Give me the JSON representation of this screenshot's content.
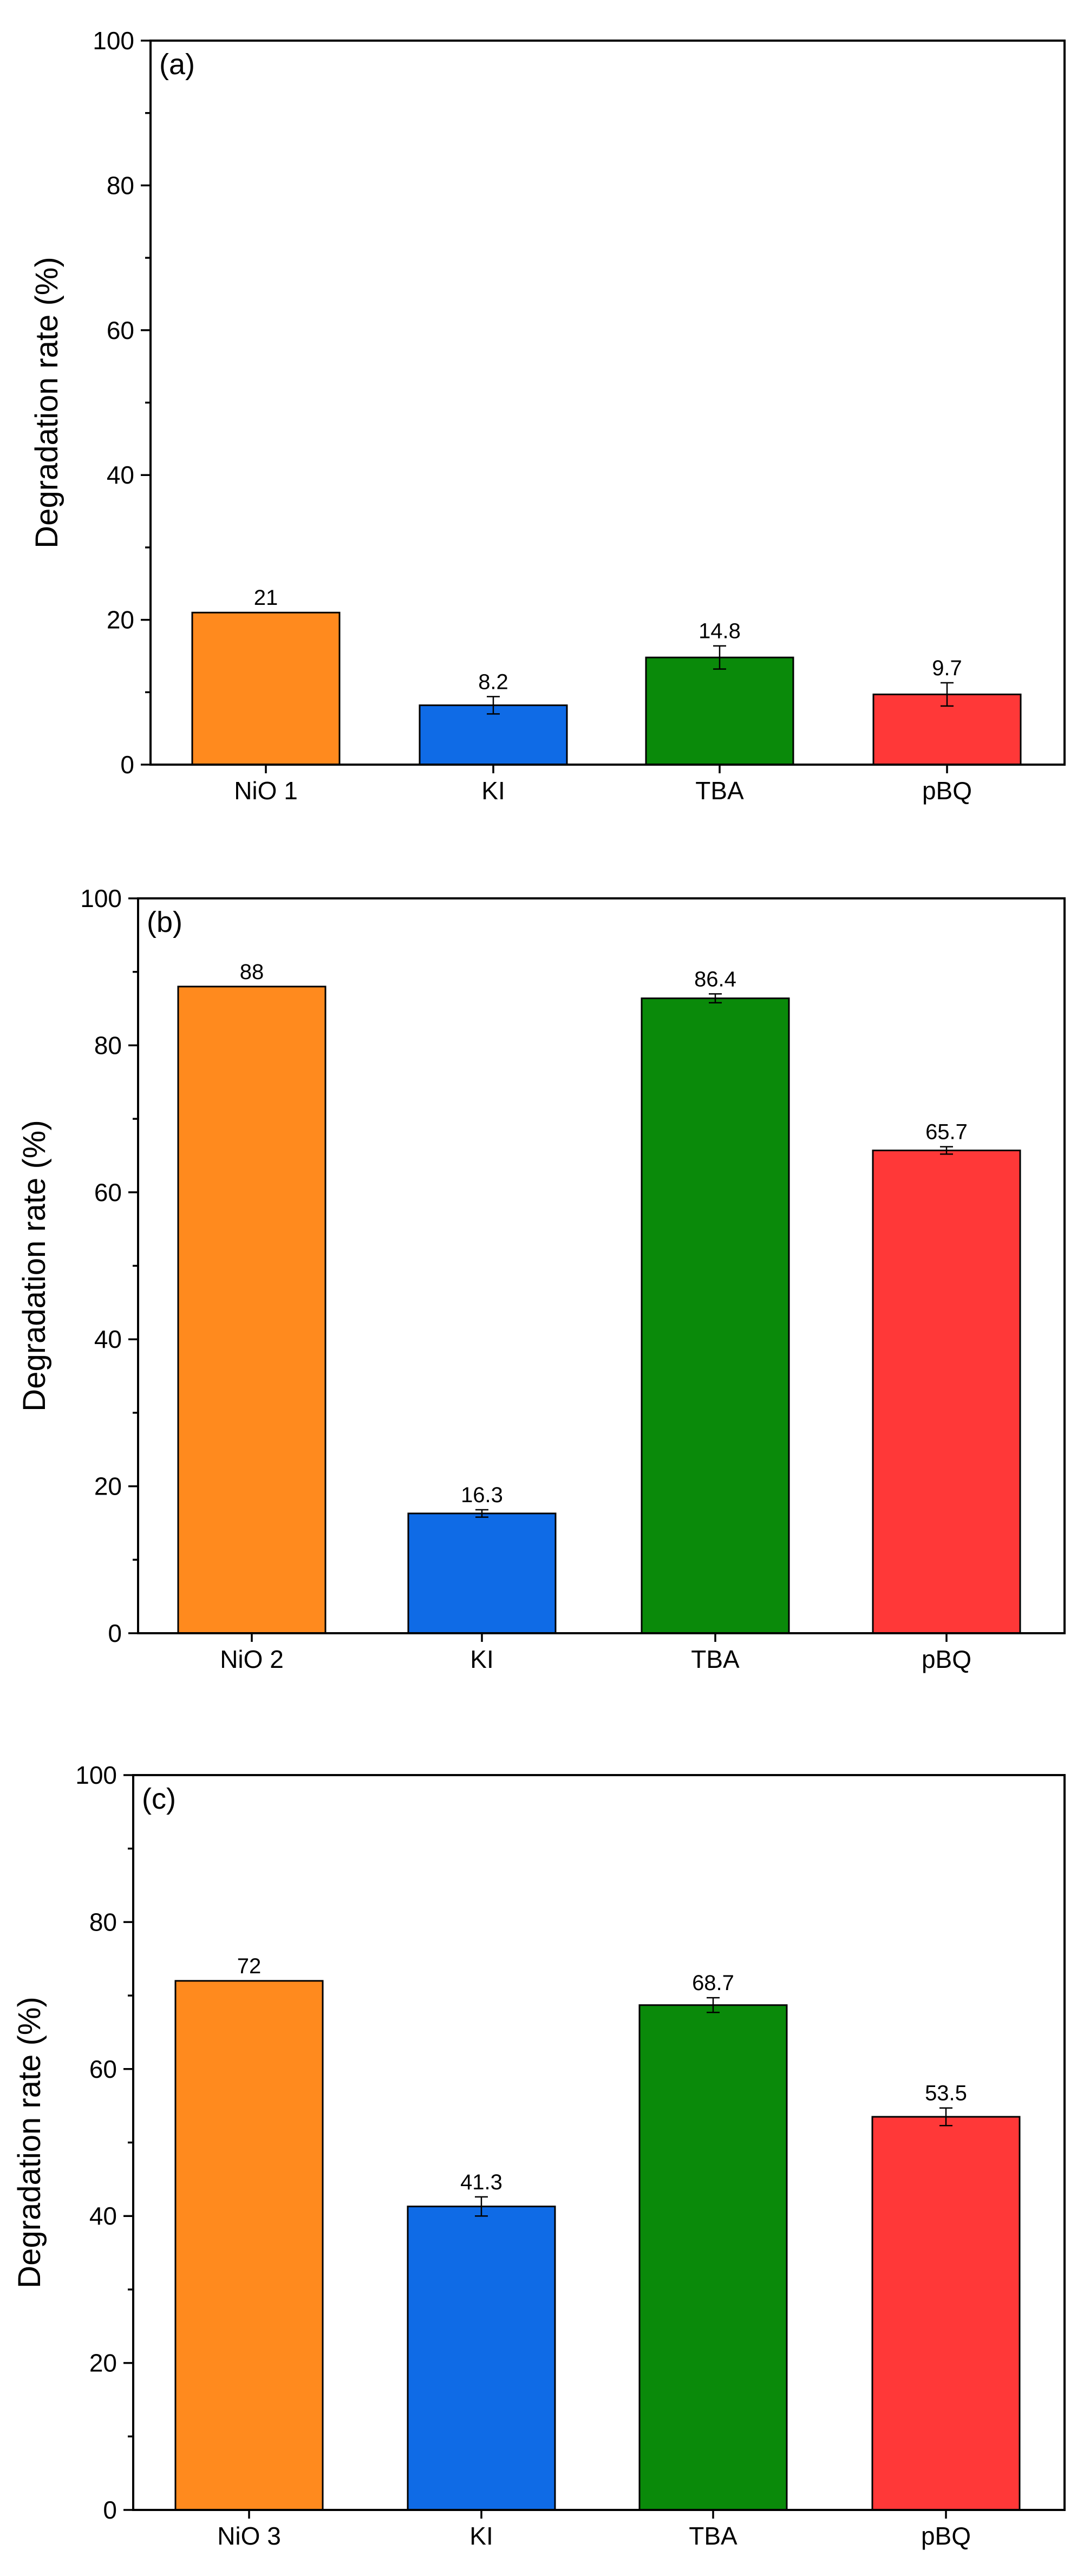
{
  "chart_data": [
    {
      "type": "bar",
      "panel_label": "(a)",
      "ylabel": "Degradation rate (%)",
      "xlabel": "",
      "ylim": [
        0,
        100
      ],
      "yticks": [
        0,
        20,
        40,
        60,
        80,
        100
      ],
      "grid": false,
      "categories": [
        "NiO 1",
        "KI",
        "TBA",
        "pBQ"
      ],
      "values": [
        21,
        8.2,
        14.8,
        9.7
      ],
      "value_labels": [
        "21",
        "8.2",
        "14.8",
        "9.7"
      ],
      "errors": [
        0,
        1.2,
        1.6,
        1.6
      ],
      "colors": [
        "#ff8a1e",
        "#0f6be6",
        "#0a8a0a",
        "#ff3838"
      ]
    },
    {
      "type": "bar",
      "panel_label": "(b)",
      "ylabel": "Degradation rate (%)",
      "xlabel": "",
      "ylim": [
        0,
        100
      ],
      "yticks": [
        0,
        20,
        40,
        60,
        80,
        100
      ],
      "grid": false,
      "categories": [
        "NiO 2",
        "KI",
        "TBA",
        "pBQ"
      ],
      "values": [
        88,
        16.3,
        86.4,
        65.7
      ],
      "value_labels": [
        "88",
        "16.3",
        "86.4",
        "65.7"
      ],
      "errors": [
        0,
        0.5,
        0.6,
        0.5
      ],
      "colors": [
        "#ff8a1e",
        "#0f6be6",
        "#0a8a0a",
        "#ff3838"
      ]
    },
    {
      "type": "bar",
      "panel_label": "(c)",
      "ylabel": "Degradation rate (%)",
      "xlabel": "",
      "ylim": [
        0,
        100
      ],
      "yticks": [
        0,
        20,
        40,
        60,
        80,
        100
      ],
      "grid": false,
      "categories": [
        "NiO 3",
        "KI",
        "TBA",
        "pBQ"
      ],
      "values": [
        72,
        41.3,
        68.7,
        53.5
      ],
      "value_labels": [
        "72",
        "41.3",
        "68.7",
        "53.5"
      ],
      "errors": [
        0,
        1.3,
        1.0,
        1.2
      ],
      "colors": [
        "#ff8a1e",
        "#0f6be6",
        "#0a8a0a",
        "#ff3838"
      ]
    }
  ]
}
